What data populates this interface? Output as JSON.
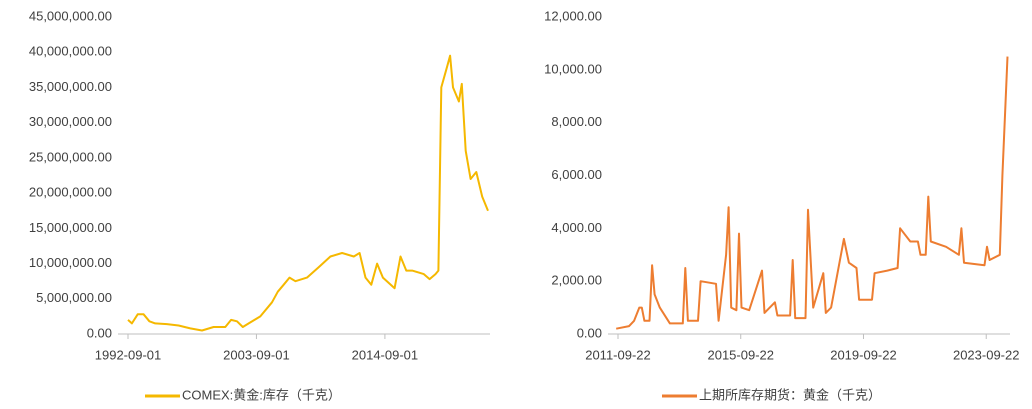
{
  "chart_data": [
    {
      "type": "line",
      "x": [
        "1992-09",
        "1993-01",
        "1993-07",
        "1994-01",
        "1994-07",
        "1995-01",
        "1996-01",
        "1997-01",
        "1998-01",
        "1999-01",
        "2000-01",
        "2001-01",
        "2001-07",
        "2002-01",
        "2002-07",
        "2003-01",
        "2004-01",
        "2005-01",
        "2005-07",
        "2006-01",
        "2006-07",
        "2007-01",
        "2008-01",
        "2009-01",
        "2010-01",
        "2011-01",
        "2012-01",
        "2012-07",
        "2013-01",
        "2013-07",
        "2014-01",
        "2014-07",
        "2015-07",
        "2016-01",
        "2016-07",
        "2017-01",
        "2018-01",
        "2018-07",
        "2019-01",
        "2019-04",
        "2019-07",
        "2020-01",
        "2020-04",
        "2020-07",
        "2021-01",
        "2021-04",
        "2021-08",
        "2022-01",
        "2022-07",
        "2023-01",
        "2023-07"
      ],
      "series": [
        {
          "name": "COMEX:黄金:库存（千克）",
          "color": "#f5b800",
          "values": [
            2000000,
            1500000,
            2800000,
            2800000,
            1800000,
            1500000,
            1400000,
            1200000,
            800000,
            500000,
            1000000,
            1000000,
            2000000,
            1800000,
            1000000,
            1500000,
            2500000,
            4500000,
            6000000,
            7000000,
            8000000,
            7500000,
            8000000,
            9500000,
            11000000,
            11500000,
            11000000,
            11500000,
            8000000,
            7000000,
            10000000,
            8000000,
            6500000,
            11000000,
            9000000,
            9000000,
            8500000,
            7800000,
            8500000,
            9000000,
            35000000,
            38000000,
            39500000,
            35000000,
            33000000,
            35500000,
            26000000,
            22000000,
            23000000,
            19500000,
            17500000
          ]
        }
      ],
      "xlim": [
        "1992-09-01",
        "2023-09-01"
      ],
      "xticks": [
        "1992-09-01",
        "2003-09-01",
        "2014-09-01"
      ],
      "ylim": [
        0,
        45000000
      ],
      "yticks": [
        {
          "value": 0,
          "label": "0.00"
        },
        {
          "value": 5000000,
          "label": "5,000,000.00"
        },
        {
          "value": 10000000,
          "label": "10,000,000.00"
        },
        {
          "value": 15000000,
          "label": "15,000,000.00"
        },
        {
          "value": 20000000,
          "label": "20,000,000.00"
        },
        {
          "value": 25000000,
          "label": "25,000,000.00"
        },
        {
          "value": 30000000,
          "label": "30,000,000.00"
        },
        {
          "value": 35000000,
          "label": "35,000,000.00"
        },
        {
          "value": 40000000,
          "label": "40,000,000.00"
        },
        {
          "value": 45000000,
          "label": "45,000,000.00"
        }
      ],
      "grid": false
    },
    {
      "type": "line",
      "x": [
        "2011-09",
        "2012-02",
        "2012-04",
        "2012-06",
        "2012-07",
        "2012-08",
        "2012-10",
        "2012-11",
        "2012-12",
        "2013-02",
        "2013-06",
        "2013-11",
        "2013-12",
        "2014-01",
        "2014-05",
        "2014-06",
        "2014-12",
        "2015-01",
        "2015-04",
        "2015-05",
        "2015-06",
        "2015-08",
        "2015-09",
        "2015-10",
        "2016-01",
        "2016-06",
        "2016-07",
        "2016-11",
        "2016-12",
        "2017-05",
        "2017-06",
        "2017-07",
        "2017-11",
        "2017-12",
        "2018-02",
        "2018-06",
        "2018-07",
        "2018-09",
        "2019-02",
        "2019-04",
        "2019-07",
        "2019-08",
        "2020-01",
        "2020-02",
        "2020-07",
        "2020-11",
        "2020-12",
        "2021-04",
        "2021-07",
        "2021-08",
        "2021-10",
        "2021-11",
        "2021-12",
        "2022-06",
        "2022-11",
        "2022-12",
        "2023-01",
        "2023-09",
        "2023-10",
        "2023-11",
        "2024-03",
        "2024-04",
        "2024-05",
        "2024-06"
      ],
      "series": [
        {
          "name": "上期所库存期货：黄金（千克）",
          "color": "#ed7d31",
          "values": [
            200,
            300,
            500,
            1000,
            1000,
            500,
            500,
            2600,
            1500,
            1000,
            400,
            400,
            2500,
            500,
            500,
            2000,
            1900,
            500,
            3000,
            4800,
            1000,
            900,
            3800,
            1000,
            900,
            2400,
            800,
            1200,
            700,
            700,
            2800,
            600,
            600,
            4700,
            1000,
            2300,
            800,
            1000,
            3600,
            2700,
            2500,
            1300,
            1300,
            2300,
            2400,
            2500,
            4000,
            3500,
            3500,
            3000,
            3000,
            5200,
            3500,
            3300,
            3000,
            4000,
            2700,
            2600,
            3300,
            2800,
            3000,
            6000,
            8200,
            10500
          ]
        }
      ],
      "xlim": [
        "2011-09-22",
        "2024-07-01"
      ],
      "xticks": [
        "2011-09-22",
        "2015-09-22",
        "2019-09-22",
        "2023-09-22"
      ],
      "ylim": [
        0,
        12000
      ],
      "yticks": [
        {
          "value": 0,
          "label": "0.00"
        },
        {
          "value": 2000,
          "label": "2,000.00"
        },
        {
          "value": 4000,
          "label": "4,000.00"
        },
        {
          "value": 6000,
          "label": "6,000.00"
        },
        {
          "value": 8000,
          "label": "8,000.00"
        },
        {
          "value": 10000,
          "label": "10,000.00"
        },
        {
          "value": 12000,
          "label": "12,000.00"
        }
      ],
      "grid": false
    }
  ]
}
